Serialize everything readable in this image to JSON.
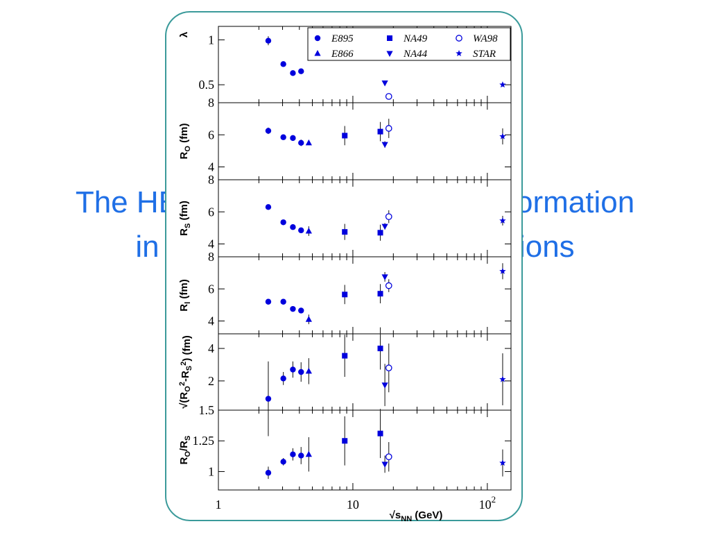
{
  "slide": {
    "title_line_1": "The HBT energy dependence information",
    "title_line_2": "in relativistic heavy-ion collisions"
  },
  "colors": {
    "marker": "#0000dd",
    "frame": "#3a9a9a",
    "title": "#1f6fe6"
  },
  "chart_data": {
    "type": "scatter",
    "x_scale": "log",
    "xlim": [
      1,
      150
    ],
    "x_ticks": [
      {
        "value": 1,
        "label": "1"
      },
      {
        "value": 10,
        "label": "10"
      },
      {
        "value": 100,
        "label": "10",
        "sup": "2"
      }
    ],
    "xlabel": "√s_NN (GeV)",
    "legend": {
      "placement": "top-right",
      "entries": [
        {
          "name": "E895",
          "marker": "circle"
        },
        {
          "name": "NA49",
          "marker": "square"
        },
        {
          "name": "WA98",
          "marker": "open-circle"
        },
        {
          "name": "E866",
          "marker": "triangle-up"
        },
        {
          "name": "NA44",
          "marker": "triangle-down"
        },
        {
          "name": "STAR",
          "marker": "star"
        }
      ]
    },
    "panels": [
      {
        "key": "lambda",
        "ylabel": "λ",
        "ylim": [
          0.3,
          1.15
        ],
        "y_ticks": [
          {
            "value": 1,
            "label": "1"
          },
          {
            "value": 0.5,
            "label": "0.5"
          }
        ],
        "series": [
          {
            "name": "E895",
            "marker": "circle",
            "x": [
              2.35,
              3.04,
              3.58,
              4.12
            ],
            "y": [
              0.99,
              0.73,
              0.63,
              0.65
            ],
            "err": [
              0.05,
              0.02,
              0.02,
              0.03
            ]
          },
          {
            "name": "NA44",
            "marker": "triangle-down",
            "x": [
              17.3
            ],
            "y": [
              0.52
            ],
            "err": [
              0.02
            ]
          },
          {
            "name": "WA98",
            "marker": "open-circle",
            "x": [
              18.5
            ],
            "y": [
              0.37
            ],
            "err": [
              0.02
            ]
          },
          {
            "name": "STAR",
            "marker": "star",
            "x": [
              130
            ],
            "y": [
              0.5
            ],
            "err": [
              0.02
            ]
          }
        ]
      },
      {
        "key": "ro",
        "ylabel": "R_O (fm)",
        "ylim": [
          3.2,
          8
        ],
        "y_ticks": [
          {
            "value": 8,
            "label": "8"
          },
          {
            "value": 6,
            "label": "6"
          },
          {
            "value": 4,
            "label": "4"
          }
        ],
        "series": [
          {
            "name": "E895",
            "marker": "circle",
            "x": [
              2.35,
              3.04,
              3.58,
              4.12
            ],
            "y": [
              6.25,
              5.85,
              5.8,
              5.5
            ],
            "err": [
              0.2,
              0.15,
              0.15,
              0.2
            ]
          },
          {
            "name": "E866",
            "marker": "triangle-up",
            "x": [
              4.7
            ],
            "y": [
              5.5
            ],
            "err": [
              0.1
            ]
          },
          {
            "name": "NA49",
            "marker": "square",
            "x": [
              8.7,
              16.0
            ],
            "y": [
              5.95,
              6.2
            ],
            "err": [
              0.6,
              0.6
            ]
          },
          {
            "name": "NA44",
            "marker": "triangle-down",
            "x": [
              17.3
            ],
            "y": [
              5.4
            ],
            "err": [
              0.2
            ]
          },
          {
            "name": "WA98",
            "marker": "open-circle",
            "x": [
              18.5
            ],
            "y": [
              6.4
            ],
            "err": [
              0.6
            ]
          },
          {
            "name": "STAR",
            "marker": "star",
            "x": [
              130
            ],
            "y": [
              5.9
            ],
            "err": [
              0.5
            ]
          }
        ]
      },
      {
        "key": "rs",
        "ylabel": "R_S (fm)",
        "ylim": [
          3.2,
          8
        ],
        "y_ticks": [
          {
            "value": 8,
            "label": "8"
          },
          {
            "value": 6,
            "label": "6"
          },
          {
            "value": 4,
            "label": "4"
          }
        ],
        "series": [
          {
            "name": "E895",
            "marker": "circle",
            "x": [
              2.35,
              3.04,
              3.58,
              4.12
            ],
            "y": [
              6.3,
              5.35,
              5.05,
              4.85
            ],
            "err": [
              0.1,
              0.1,
              0.1,
              0.1
            ]
          },
          {
            "name": "E866",
            "marker": "triangle-up",
            "x": [
              4.7
            ],
            "y": [
              4.8
            ],
            "err": [
              0.3
            ]
          },
          {
            "name": "NA49",
            "marker": "square",
            "x": [
              8.7,
              16.0
            ],
            "y": [
              4.75,
              4.7
            ],
            "err": [
              0.5,
              0.5
            ]
          },
          {
            "name": "NA44",
            "marker": "triangle-down",
            "x": [
              17.3
            ],
            "y": [
              5.1
            ],
            "err": [
              0.2
            ]
          },
          {
            "name": "WA98",
            "marker": "open-circle",
            "x": [
              18.5
            ],
            "y": [
              5.7
            ],
            "err": [
              0.4
            ]
          },
          {
            "name": "STAR",
            "marker": "star",
            "x": [
              130
            ],
            "y": [
              5.45
            ],
            "err": [
              0.3
            ]
          }
        ]
      },
      {
        "key": "rl",
        "ylabel": "R_l (fm)",
        "ylim": [
          3.2,
          8
        ],
        "y_ticks": [
          {
            "value": 8,
            "label": "8"
          },
          {
            "value": 6,
            "label": "6"
          },
          {
            "value": 4,
            "label": "4"
          }
        ],
        "series": [
          {
            "name": "E895",
            "marker": "circle",
            "x": [
              2.35,
              3.04,
              3.58,
              4.12
            ],
            "y": [
              5.2,
              5.2,
              4.75,
              4.65
            ],
            "err": [
              0.1,
              0.1,
              0.1,
              0.1
            ]
          },
          {
            "name": "E866",
            "marker": "triangle-up",
            "x": [
              4.7
            ],
            "y": [
              4.1
            ],
            "err": [
              0.3
            ]
          },
          {
            "name": "NA49",
            "marker": "square",
            "x": [
              8.7,
              16.0
            ],
            "y": [
              5.65,
              5.7
            ],
            "err": [
              0.6,
              0.6
            ]
          },
          {
            "name": "NA44",
            "marker": "triangle-down",
            "x": [
              17.3
            ],
            "y": [
              6.75
            ],
            "err": [
              0.3
            ]
          },
          {
            "name": "WA98",
            "marker": "open-circle",
            "x": [
              18.5
            ],
            "y": [
              6.2
            ],
            "err": [
              0.4
            ]
          },
          {
            "name": "STAR",
            "marker": "star",
            "x": [
              130
            ],
            "y": [
              7.1
            ],
            "err": [
              0.5
            ]
          }
        ]
      },
      {
        "key": "diff",
        "ylabel": "√(R_O²-R_S²) (fm)",
        "ylim": [
          0.2,
          4.9
        ],
        "y_ticks": [
          {
            "value": 4,
            "label": "4"
          },
          {
            "value": 2,
            "label": "2"
          }
        ],
        "series": [
          {
            "name": "E895",
            "marker": "circle",
            "x": [
              2.35,
              3.04,
              3.58,
              4.12
            ],
            "y": [
              0.9,
              2.15,
              2.7,
              2.55
            ],
            "err": [
              2.3,
              0.4,
              0.5,
              0.6
            ]
          },
          {
            "name": "E866",
            "marker": "triangle-up",
            "x": [
              4.7
            ],
            "y": [
              2.6
            ],
            "err": [
              0.8
            ]
          },
          {
            "name": "NA49",
            "marker": "square",
            "x": [
              8.7,
              16.0
            ],
            "y": [
              3.55,
              4.0
            ],
            "err": [
              1.3,
              1.3
            ]
          },
          {
            "name": "NA44",
            "marker": "triangle-down",
            "x": [
              17.3
            ],
            "y": [
              1.75
            ],
            "err": [
              1.3
            ]
          },
          {
            "name": "WA98",
            "marker": "open-circle",
            "x": [
              18.5
            ],
            "y": [
              2.8
            ],
            "err": [
              1.5
            ]
          },
          {
            "name": "STAR",
            "marker": "star",
            "x": [
              130
            ],
            "y": [
              2.1
            ],
            "err": [
              1.6
            ]
          }
        ]
      },
      {
        "key": "ratio",
        "ylabel": "R_O/R_S",
        "ylim": [
          0.85,
          1.5
        ],
        "y_ticks": [
          {
            "value": 1.5,
            "label": "1.5"
          },
          {
            "value": 1.25,
            "label": "1.25"
          },
          {
            "value": 1,
            "label": "1"
          }
        ],
        "series": [
          {
            "name": "E895",
            "marker": "circle",
            "x": [
              2.35,
              3.04,
              3.58,
              4.12
            ],
            "y": [
              0.99,
              1.08,
              1.14,
              1.13
            ],
            "err": [
              0.05,
              0.03,
              0.05,
              0.07
            ]
          },
          {
            "name": "E866",
            "marker": "triangle-up",
            "x": [
              4.7
            ],
            "y": [
              1.14
            ],
            "err": [
              0.14
            ]
          },
          {
            "name": "NA49",
            "marker": "square",
            "x": [
              8.7,
              16.0
            ],
            "y": [
              1.25,
              1.31
            ],
            "err": [
              0.2,
              0.2
            ]
          },
          {
            "name": "NA44",
            "marker": "triangle-down",
            "x": [
              17.3
            ],
            "y": [
              1.06
            ],
            "err": [
              0.07
            ]
          },
          {
            "name": "WA98",
            "marker": "open-circle",
            "x": [
              18.5
            ],
            "y": [
              1.12
            ],
            "err": [
              0.12
            ]
          },
          {
            "name": "STAR",
            "marker": "star",
            "x": [
              130
            ],
            "y": [
              1.07
            ],
            "err": [
              0.11
            ]
          }
        ]
      }
    ]
  }
}
